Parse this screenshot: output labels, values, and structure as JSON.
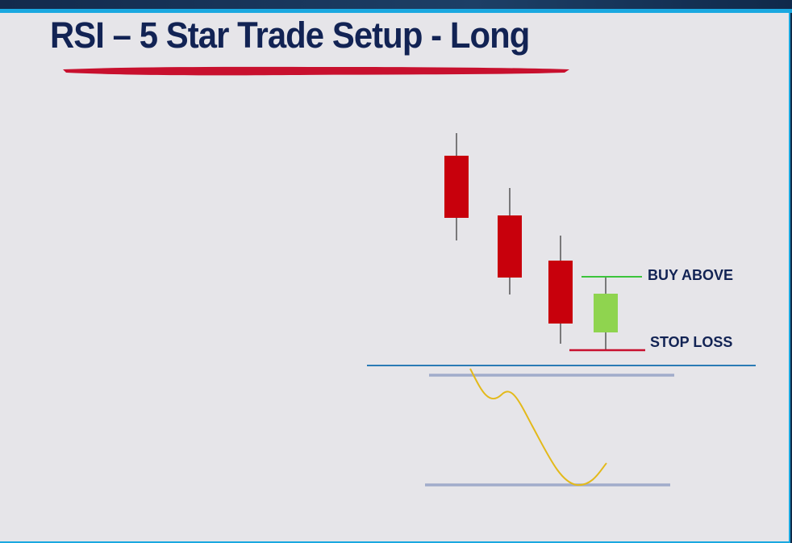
{
  "slide": {
    "title": "RSI – 5 Star Trade Setup - Long",
    "accent_color": "#c8102e",
    "frame_color": "#1aa8e0"
  },
  "diagram": {
    "bearish_color": "#c8000c",
    "bullish_color": "#8fd44f",
    "buy_line_color": "#3cc43c",
    "stop_line_color": "#c8102e",
    "rsi_line_color": "#e3b91a",
    "rsi_level_color": "#9aa6c8",
    "divider_color": "#2b7bb5",
    "labels": {
      "buy_above": "BUY ABOVE",
      "stop_loss": "STOP LOSS"
    }
  }
}
